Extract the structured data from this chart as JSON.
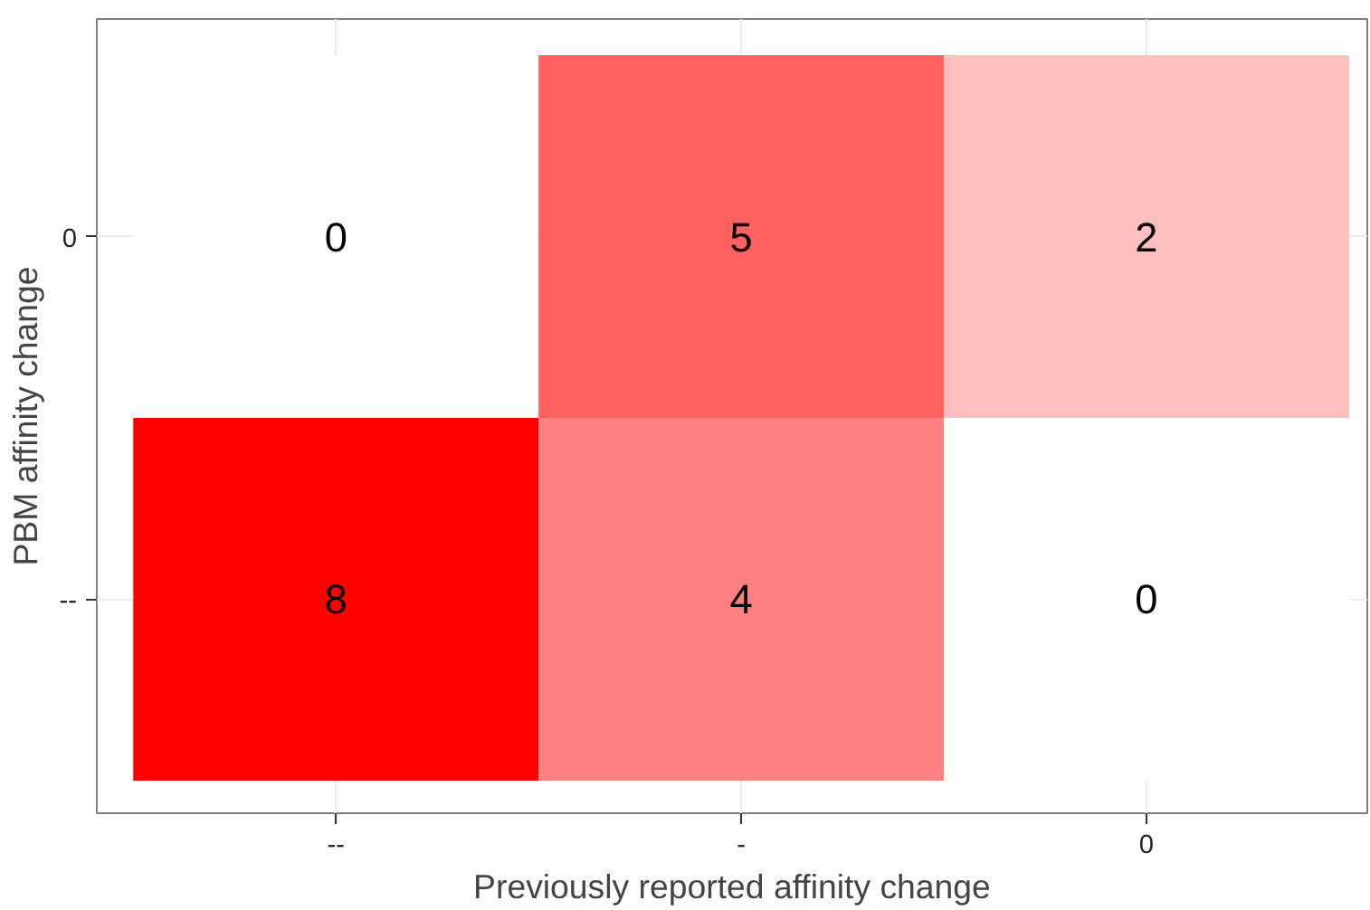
{
  "chart_data": {
    "type": "heatmap",
    "xlabel": "Previously reported affinity change",
    "ylabel": "PBM affinity change",
    "categories": [
      "--",
      "-",
      "0"
    ],
    "y_categories": [
      "0",
      "--"
    ],
    "cells": [
      [
        0,
        5,
        2
      ],
      [
        8,
        4,
        0
      ]
    ],
    "color": "#ff0000",
    "data_labels": true,
    "grid": true
  }
}
